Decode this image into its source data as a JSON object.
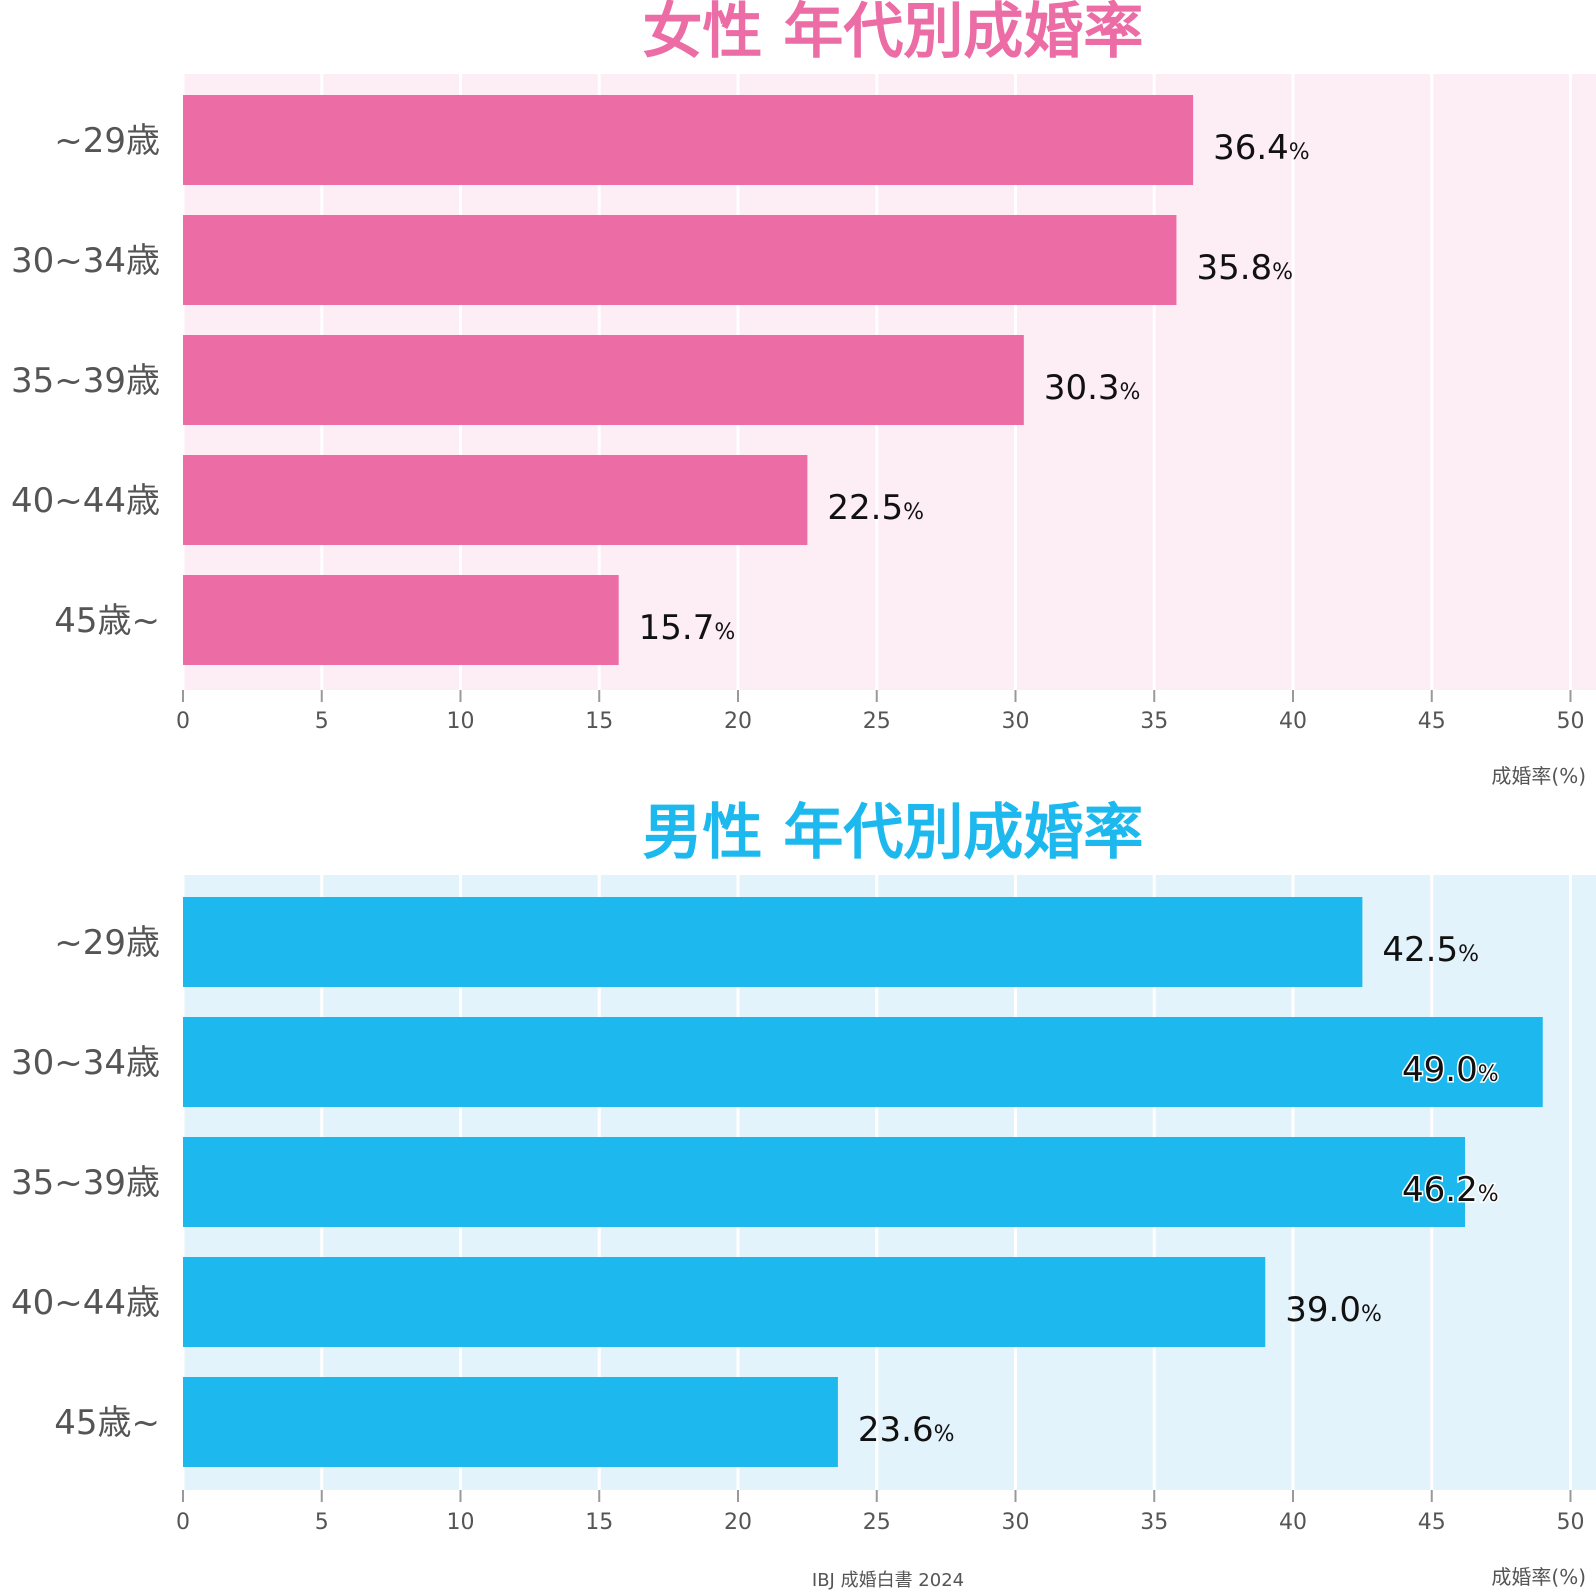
{
  "chart_data": [
    {
      "type": "bar",
      "orientation": "horizontal",
      "title": "女性 年代別成婚率",
      "categories": [
        "~29歳",
        "30~34歳",
        "35~39歳",
        "40~44歳",
        "45歳~"
      ],
      "values": [
        36.4,
        35.8,
        30.3,
        22.5,
        15.7
      ],
      "value_labels": [
        "36.4",
        "35.8",
        "30.3",
        "22.5",
        "15.7"
      ],
      "value_suffix": "%",
      "xlabel": "成婚率(%)",
      "xlim": [
        0,
        50
      ],
      "xticks": [
        "0",
        "5",
        "10",
        "15",
        "20",
        "25",
        "30",
        "35",
        "40",
        "45",
        "50"
      ],
      "grid": true,
      "colors": {
        "bar": "#EC6CA5",
        "background": "#FDEDF4",
        "title": "#EC6CA5"
      }
    },
    {
      "type": "bar",
      "orientation": "horizontal",
      "title": "男性 年代別成婚率",
      "categories": [
        "~29歳",
        "30~34歳",
        "35~39歳",
        "40~44歳",
        "45歳~"
      ],
      "values": [
        42.5,
        49.0,
        46.2,
        39.0,
        23.6
      ],
      "value_labels": [
        "42.5",
        "49.0",
        "46.2",
        "39.0",
        "23.6"
      ],
      "value_suffix": "%",
      "xlabel": "成婚率(%)",
      "xlim": [
        0,
        50
      ],
      "xticks": [
        "0",
        "5",
        "10",
        "15",
        "20",
        "25",
        "30",
        "35",
        "40",
        "45",
        "50"
      ],
      "grid": true,
      "colors": {
        "bar": "#1DB9EE",
        "background": "#E3F3FB",
        "title": "#1DB9EE"
      }
    }
  ],
  "source": "IBJ 成婚白書 2024"
}
